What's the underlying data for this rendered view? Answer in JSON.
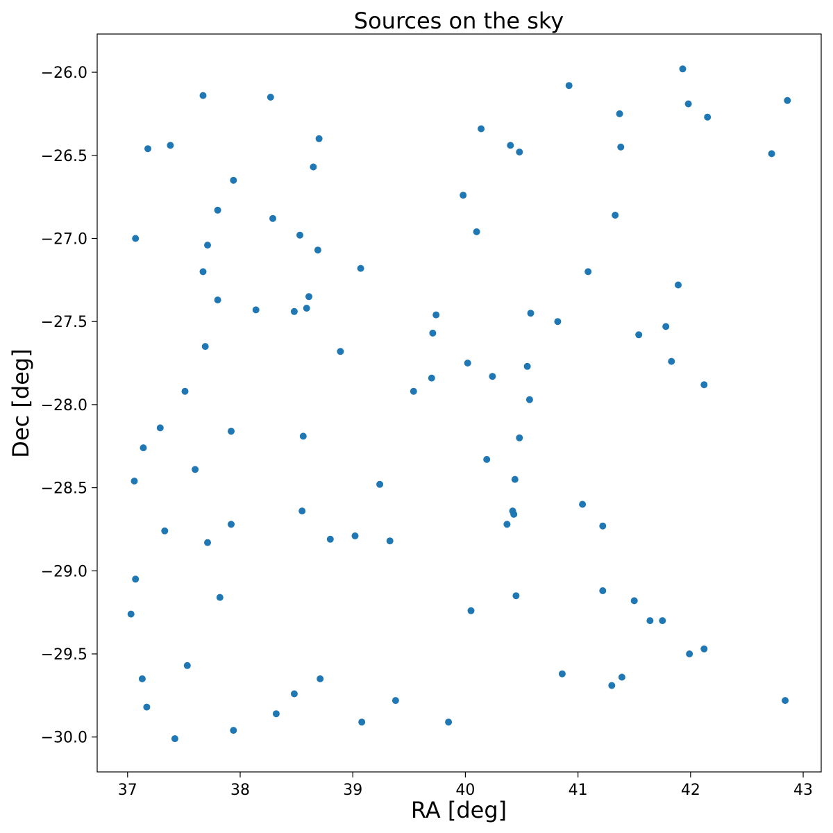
{
  "chart_data": {
    "type": "scatter",
    "title": "Sources on the sky",
    "xlabel": "RA [deg]",
    "ylabel": "Dec [deg]",
    "xlim": [
      36.73,
      43.16
    ],
    "ylim": [
      -30.21,
      -25.77
    ],
    "x_invert": false,
    "xticks": [
      {
        "value": 37,
        "label": "37"
      },
      {
        "value": 38,
        "label": "38"
      },
      {
        "value": 39,
        "label": "39"
      },
      {
        "value": 40,
        "label": "40"
      },
      {
        "value": 41,
        "label": "41"
      },
      {
        "value": 42,
        "label": "42"
      },
      {
        "value": 43,
        "label": "43"
      }
    ],
    "yticks": [
      {
        "value": -26.0,
        "label": "−26.0"
      },
      {
        "value": -26.5,
        "label": "−26.5"
      },
      {
        "value": -27.0,
        "label": "−27.0"
      },
      {
        "value": -27.5,
        "label": "−27.5"
      },
      {
        "value": -28.0,
        "label": "−28.0"
      },
      {
        "value": -28.5,
        "label": "−28.5"
      },
      {
        "value": -29.0,
        "label": "−29.0"
      },
      {
        "value": -29.5,
        "label": "−29.5"
      },
      {
        "value": -30.0,
        "label": "−30.0"
      }
    ],
    "grid": false,
    "marker_color": "#1f77b4",
    "points": [
      [
        41.93,
        -25.98
      ],
      [
        40.92,
        -26.08
      ],
      [
        37.67,
        -26.14
      ],
      [
        38.27,
        -26.15
      ],
      [
        42.86,
        -26.17
      ],
      [
        41.98,
        -26.19
      ],
      [
        41.37,
        -26.25
      ],
      [
        42.15,
        -26.27
      ],
      [
        40.14,
        -26.34
      ],
      [
        38.7,
        -26.4
      ],
      [
        37.38,
        -26.44
      ],
      [
        40.4,
        -26.44
      ],
      [
        41.38,
        -26.45
      ],
      [
        37.18,
        -26.46
      ],
      [
        40.48,
        -26.48
      ],
      [
        42.72,
        -26.49
      ],
      [
        38.65,
        -26.57
      ],
      [
        37.94,
        -26.65
      ],
      [
        39.98,
        -26.74
      ],
      [
        37.8,
        -26.83
      ],
      [
        41.33,
        -26.86
      ],
      [
        38.29,
        -26.88
      ],
      [
        40.1,
        -26.96
      ],
      [
        38.53,
        -26.98
      ],
      [
        37.07,
        -27.0
      ],
      [
        37.71,
        -27.04
      ],
      [
        38.69,
        -27.07
      ],
      [
        39.07,
        -27.18
      ],
      [
        41.09,
        -27.2
      ],
      [
        37.67,
        -27.2
      ],
      [
        41.89,
        -27.28
      ],
      [
        38.61,
        -27.35
      ],
      [
        37.8,
        -27.37
      ],
      [
        38.59,
        -27.42
      ],
      [
        38.14,
        -27.43
      ],
      [
        38.48,
        -27.44
      ],
      [
        40.58,
        -27.45
      ],
      [
        39.74,
        -27.46
      ],
      [
        40.82,
        -27.5
      ],
      [
        41.78,
        -27.53
      ],
      [
        39.71,
        -27.57
      ],
      [
        41.54,
        -27.58
      ],
      [
        37.69,
        -27.65
      ],
      [
        38.89,
        -27.68
      ],
      [
        41.83,
        -27.74
      ],
      [
        40.02,
        -27.75
      ],
      [
        40.55,
        -27.77
      ],
      [
        40.24,
        -27.83
      ],
      [
        39.7,
        -27.84
      ],
      [
        42.12,
        -27.88
      ],
      [
        39.54,
        -27.92
      ],
      [
        37.51,
        -27.92
      ],
      [
        40.57,
        -27.97
      ],
      [
        37.29,
        -28.14
      ],
      [
        37.92,
        -28.16
      ],
      [
        38.56,
        -28.19
      ],
      [
        40.48,
        -28.2
      ],
      [
        37.14,
        -28.26
      ],
      [
        40.19,
        -28.33
      ],
      [
        37.6,
        -28.39
      ],
      [
        40.44,
        -28.45
      ],
      [
        37.06,
        -28.46
      ],
      [
        39.24,
        -28.48
      ],
      [
        41.04,
        -28.6
      ],
      [
        38.55,
        -28.64
      ],
      [
        40.42,
        -28.64
      ],
      [
        40.43,
        -28.66
      ],
      [
        40.37,
        -28.72
      ],
      [
        37.92,
        -28.72
      ],
      [
        41.22,
        -28.73
      ],
      [
        37.33,
        -28.76
      ],
      [
        39.02,
        -28.79
      ],
      [
        38.8,
        -28.81
      ],
      [
        39.33,
        -28.82
      ],
      [
        37.71,
        -28.83
      ],
      [
        37.07,
        -29.05
      ],
      [
        41.22,
        -29.12
      ],
      [
        40.45,
        -29.15
      ],
      [
        37.82,
        -29.16
      ],
      [
        41.5,
        -29.18
      ],
      [
        40.05,
        -29.24
      ],
      [
        37.03,
        -29.26
      ],
      [
        41.64,
        -29.3
      ],
      [
        41.75,
        -29.3
      ],
      [
        42.12,
        -29.47
      ],
      [
        41.99,
        -29.5
      ],
      [
        37.53,
        -29.57
      ],
      [
        40.86,
        -29.62
      ],
      [
        41.39,
        -29.64
      ],
      [
        37.13,
        -29.65
      ],
      [
        38.71,
        -29.65
      ],
      [
        41.3,
        -29.69
      ],
      [
        38.48,
        -29.74
      ],
      [
        39.38,
        -29.78
      ],
      [
        42.84,
        -29.78
      ],
      [
        37.17,
        -29.82
      ],
      [
        38.32,
        -29.86
      ],
      [
        39.08,
        -29.91
      ],
      [
        39.85,
        -29.91
      ],
      [
        37.94,
        -29.96
      ],
      [
        37.42,
        -30.01
      ]
    ]
  }
}
